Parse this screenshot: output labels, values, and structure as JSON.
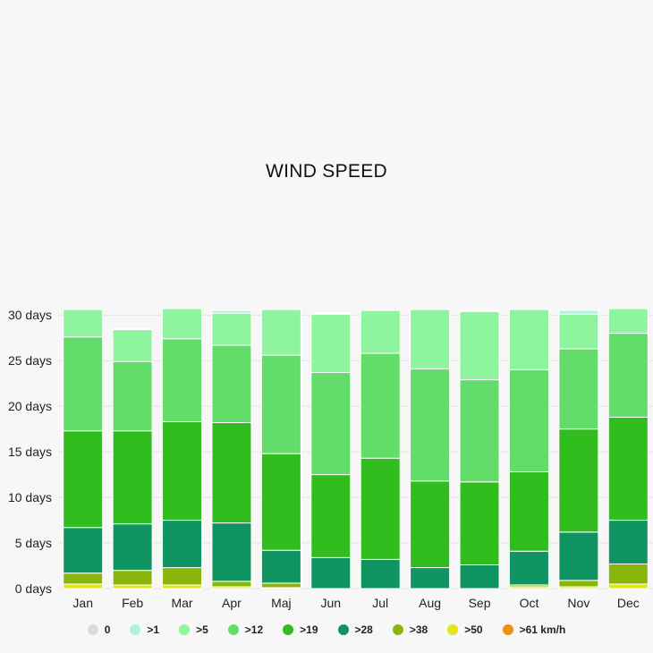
{
  "chart_data": {
    "type": "bar",
    "stacked": true,
    "title": "WIND SPEED",
    "categories": [
      "Jan",
      "Feb",
      "Mar",
      "Apr",
      "Maj",
      "Jun",
      "Jul",
      "Aug",
      "Sep",
      "Oct",
      "Nov",
      "Dec"
    ],
    "y_ticks": [
      "0 days",
      "5 days",
      "10 days",
      "15 days",
      "20 days",
      "25 days",
      "30 days"
    ],
    "ylim": [
      0,
      31
    ],
    "grid": true,
    "legend_position": "bottom",
    "series": [
      {
        "name": "0",
        "color": "#d9d9d9",
        "values": [
          0,
          0,
          0,
          0,
          0,
          0,
          0,
          0,
          0,
          0,
          0,
          0
        ]
      },
      {
        "name": ">1",
        "color": "#aef5d6",
        "values": [
          0,
          0.1,
          0,
          0.3,
          0,
          0.1,
          0,
          0,
          0.1,
          0,
          0.4,
          0
        ]
      },
      {
        "name": ">5",
        "color": "#8ef59e",
        "values": [
          3,
          3.5,
          3.3,
          3.5,
          5,
          6.4,
          4.7,
          6.5,
          7.5,
          6.6,
          3.8,
          2.7
        ]
      },
      {
        "name": ">12",
        "color": "#63dd69",
        "values": [
          10.3,
          7.6,
          9.1,
          8.5,
          10.8,
          11.2,
          11.5,
          12.3,
          11.2,
          11.2,
          8.8,
          9.2
        ]
      },
      {
        "name": ">19",
        "color": "#31bd1e",
        "values": [
          10.6,
          10.2,
          10.8,
          11,
          10.6,
          9.1,
          11.1,
          9.5,
          9.1,
          8.7,
          11.3,
          11.3
        ]
      },
      {
        "name": ">28",
        "color": "#0f9462",
        "values": [
          5,
          5.1,
          5.2,
          6.4,
          3.6,
          3.4,
          3.2,
          2.3,
          2.6,
          3.7,
          5.3,
          4.8
        ]
      },
      {
        "name": ">38",
        "color": "#8ab60c",
        "values": [
          1.2,
          1.6,
          1.9,
          0.6,
          0.5,
          0,
          0,
          0,
          0,
          0.2,
          0.7,
          2.2
        ]
      },
      {
        "name": ">50",
        "color": "#e4e41e",
        "values": [
          0.5,
          0.4,
          0.4,
          0.2,
          0.1,
          0,
          0,
          0,
          0,
          0.2,
          0.2,
          0.5
        ]
      },
      {
        "name": ">61 km/h",
        "color": "#f18f08",
        "values": [
          0,
          0,
          0,
          0,
          0,
          0,
          0,
          0,
          0,
          0,
          0,
          0
        ]
      }
    ]
  }
}
